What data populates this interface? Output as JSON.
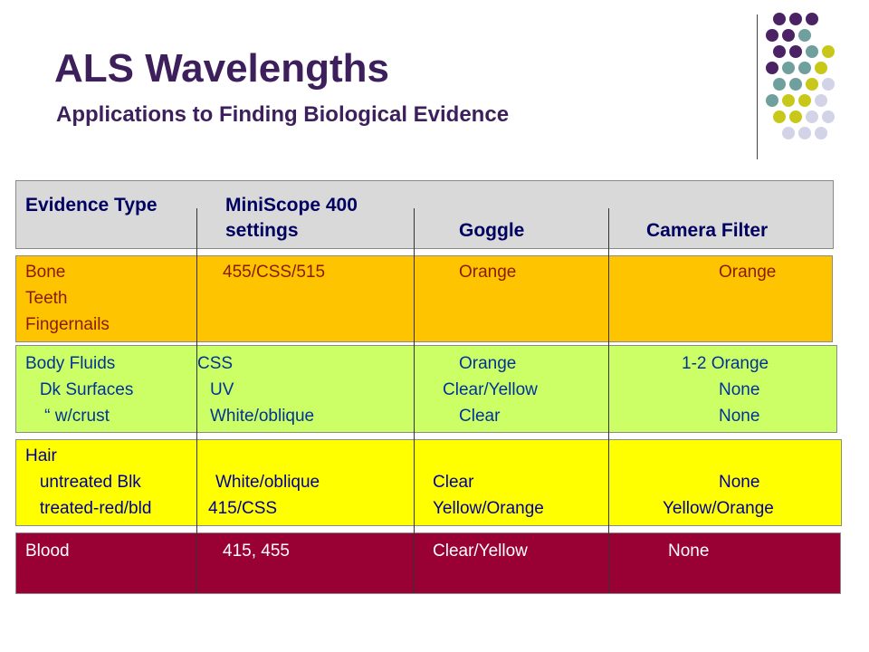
{
  "slide": {
    "title": "ALS Wavelengths",
    "subtitle": "Applications to Finding Biological Evidence"
  },
  "decoration": {
    "dot_colors": {
      "purple": "#4b2264",
      "teal": "#6fa09d",
      "olive": "#c8c81a",
      "lavender": "#d3d3e8"
    }
  },
  "table": {
    "header": {
      "col1": "Evidence Type",
      "col2_line1": "MiniScope 400",
      "col2_line2": "settings",
      "col3": "Goggle",
      "col4": "Camera Filter"
    },
    "bone_group": {
      "label_bone": "Bone",
      "label_teeth": "Teeth",
      "label_fingernails": "Fingernails",
      "setting": "455/CSS/515",
      "goggle": "Orange",
      "filter": "Orange"
    },
    "fluids_group": {
      "label_main": "Body Fluids",
      "label_sub1": "   Dk Surfaces",
      "label_sub2": "    “ w/crust",
      "setting_main": "CSS",
      "setting_sub1": "UV",
      "setting_sub2": "White/oblique",
      "goggle_main": "Orange",
      "goggle_sub1": "Clear/Yellow",
      "goggle_sub2": "Clear",
      "filter_main": "1-2 Orange",
      "filter_sub1": "None",
      "filter_sub2": "None"
    },
    "hair_group": {
      "label_main": "Hair",
      "label_sub1": "   untreated Blk",
      "label_sub2": "   treated-red/bld",
      "setting_sub1": "White/oblique",
      "setting_sub2": "415/CSS",
      "goggle_sub1": "Clear",
      "goggle_sub2": "Yellow/Orange",
      "filter_sub1": "None",
      "filter_sub2": "Yellow/Orange"
    },
    "blood_group": {
      "label": "Blood",
      "setting": "415, 455",
      "goggle": "Clear/Yellow",
      "filter": "None"
    },
    "colors": {
      "header_bg": "#d9d9d9",
      "bone_bg": "#ffc400",
      "fluids_bg": "#ccff66",
      "hair_bg": "#ffff00",
      "blood_bg": "#990033"
    }
  }
}
